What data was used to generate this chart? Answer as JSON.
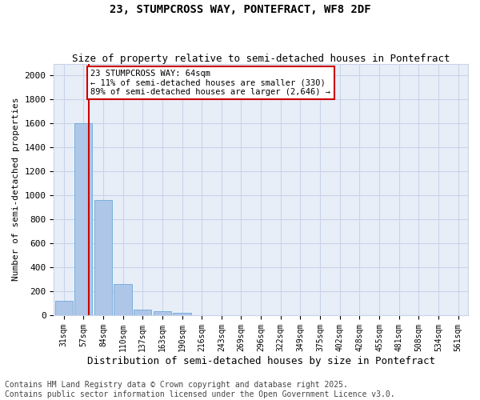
{
  "title": "23, STUMPCROSS WAY, PONTEFRACT, WF8 2DF",
  "subtitle": "Size of property relative to semi-detached houses in Pontefract",
  "xlabel": "Distribution of semi-detached houses by size in Pontefract",
  "ylabel": "Number of semi-detached properties",
  "categories": [
    "31sqm",
    "57sqm",
    "84sqm",
    "110sqm",
    "137sqm",
    "163sqm",
    "190sqm",
    "216sqm",
    "243sqm",
    "269sqm",
    "296sqm",
    "322sqm",
    "349sqm",
    "375sqm",
    "402sqm",
    "428sqm",
    "455sqm",
    "481sqm",
    "508sqm",
    "534sqm",
    "561sqm"
  ],
  "values": [
    120,
    1600,
    960,
    260,
    45,
    35,
    20,
    0,
    0,
    0,
    0,
    0,
    0,
    0,
    0,
    0,
    0,
    0,
    0,
    0,
    0
  ],
  "bar_color": "#aec6e8",
  "bar_edge_color": "#5a9fd4",
  "vline_x": 1.27,
  "vline_color": "#cc0000",
  "annotation_text": "23 STUMPCROSS WAY: 64sqm\n← 11% of semi-detached houses are smaller (330)\n89% of semi-detached houses are larger (2,646) →",
  "annotation_box_color": "#cc0000",
  "annotation_bg": "#ffffff",
  "ylim": [
    0,
    2100
  ],
  "yticks": [
    0,
    200,
    400,
    600,
    800,
    1000,
    1200,
    1400,
    1600,
    1800,
    2000
  ],
  "title_fontsize": 10,
  "subtitle_fontsize": 9,
  "footnote": "Contains HM Land Registry data © Crown copyright and database right 2025.\nContains public sector information licensed under the Open Government Licence v3.0.",
  "footnote_fontsize": 7,
  "grid_color": "#c8d4e8",
  "bg_color": "#e8eef8"
}
